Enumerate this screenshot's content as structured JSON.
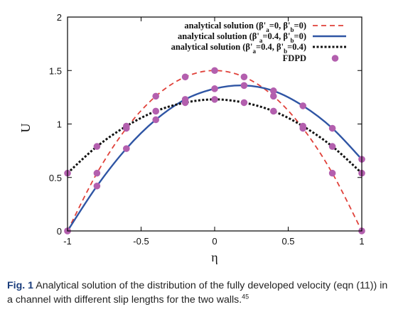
{
  "chart_data": {
    "type": "line",
    "xlabel": "η",
    "ylabel": "U",
    "xlim": [
      -1,
      1
    ],
    "ylim": [
      0,
      2
    ],
    "x_ticks": [
      "-1",
      "-0.5",
      "0",
      "0.5",
      "1"
    ],
    "x_tick_values": [
      -1,
      -0.5,
      0,
      0.5,
      1
    ],
    "y_ticks": [
      "0",
      "0.5",
      "1",
      "1.5",
      "2"
    ],
    "y_tick_values": [
      0,
      0.5,
      1,
      1.5,
      2
    ],
    "grid": false,
    "legend_position": "top-right",
    "series": [
      {
        "name": "analytical solution (β'a=0, β'b=0)",
        "style": "dashed",
        "color": "#e0413a",
        "x": [
          -1,
          -0.8,
          -0.6,
          -0.4,
          -0.2,
          0,
          0.2,
          0.4,
          0.6,
          0.8,
          1
        ],
        "y": [
          0,
          0.54,
          0.96,
          1.26,
          1.44,
          1.5,
          1.44,
          1.26,
          0.96,
          0.54,
          0
        ]
      },
      {
        "name": "analytical solution (β'a=0.4, β'b=0)",
        "style": "solid",
        "color": "#2f55a4",
        "x": [
          -1,
          -0.8,
          -0.6,
          -0.4,
          -0.2,
          0,
          0.2,
          0.4,
          0.6,
          0.8,
          1
        ],
        "y": [
          0,
          0.42,
          0.77,
          1.04,
          1.23,
          1.33,
          1.36,
          1.31,
          1.17,
          0.96,
          0.67
        ]
      },
      {
        "name": "analytical solution (β'a=0.4, β'b=0.4)",
        "style": "dotted",
        "color": "#111111",
        "x": [
          -1,
          -0.8,
          -0.6,
          -0.4,
          -0.2,
          0,
          0.2,
          0.4,
          0.6,
          0.8,
          1
        ],
        "y": [
          0.54,
          0.79,
          0.98,
          1.12,
          1.2,
          1.23,
          1.2,
          1.12,
          0.98,
          0.79,
          0.54
        ]
      },
      {
        "name": "FDPD",
        "style": "markers",
        "color": "#b35fae",
        "points": [
          [
            -1,
            0
          ],
          [
            -0.8,
            0.54
          ],
          [
            -0.6,
            0.96
          ],
          [
            -0.4,
            1.26
          ],
          [
            -0.2,
            1.44
          ],
          [
            0,
            1.5
          ],
          [
            0.2,
            1.44
          ],
          [
            0.4,
            1.26
          ],
          [
            0.6,
            0.96
          ],
          [
            0.8,
            0.54
          ],
          [
            1,
            0
          ],
          [
            -1,
            0
          ],
          [
            -0.8,
            0.42
          ],
          [
            -0.6,
            0.77
          ],
          [
            -0.4,
            1.04
          ],
          [
            -0.2,
            1.23
          ],
          [
            0,
            1.33
          ],
          [
            0.2,
            1.36
          ],
          [
            0.4,
            1.31
          ],
          [
            0.6,
            1.17
          ],
          [
            0.8,
            0.96
          ],
          [
            1,
            0.67
          ],
          [
            -1,
            0.54
          ],
          [
            -0.8,
            0.79
          ],
          [
            -0.6,
            0.98
          ],
          [
            -0.4,
            1.12
          ],
          [
            -0.2,
            1.2
          ],
          [
            0,
            1.23
          ],
          [
            0.2,
            1.2
          ],
          [
            0.4,
            1.12
          ],
          [
            0.6,
            0.98
          ],
          [
            0.8,
            0.79
          ],
          [
            1,
            0.54
          ]
        ]
      }
    ],
    "legend": [
      {
        "prefix": "analytical solution (β'",
        "s1": "a",
        "mid": "=0, β'",
        "s2": "b",
        "suffix": "=0)"
      },
      {
        "prefix": "analytical solution (β'",
        "s1": "a",
        "mid": "=0.4, β'",
        "s2": "b",
        "suffix": "=0)"
      },
      {
        "prefix": "analytical solution (β'",
        "s1": "a",
        "mid": "=0.4, β'",
        "s2": "b",
        "suffix": "=0.4)"
      },
      {
        "prefix": "FDPD",
        "s1": "",
        "mid": "",
        "s2": "",
        "suffix": ""
      }
    ]
  },
  "caption": {
    "label": "Fig. 1",
    "text": "Analytical solution of the distribution of the fully developed velocity (eqn (11)) in a channel with different slip lengths for the two walls.",
    "ref": "45"
  }
}
